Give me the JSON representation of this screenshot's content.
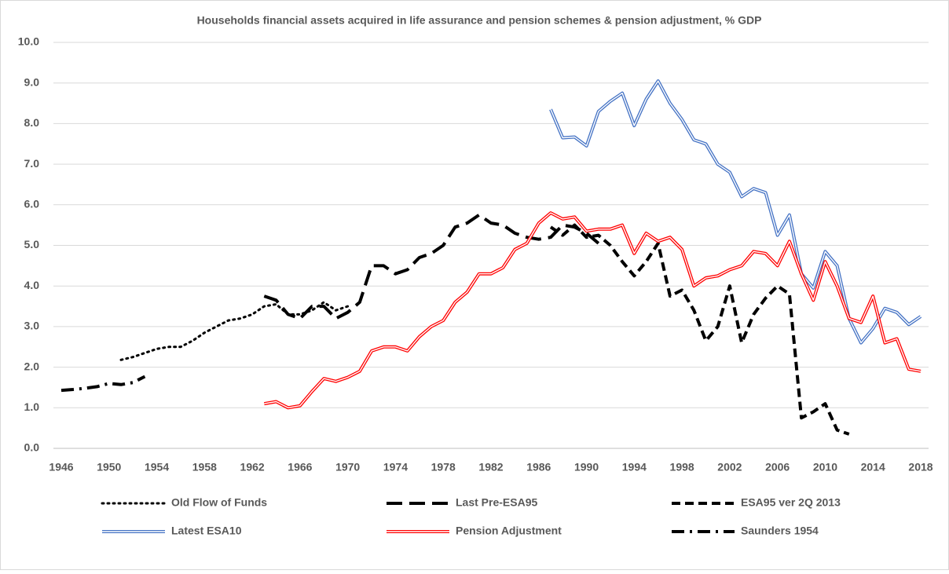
{
  "chart_data": {
    "type": "line",
    "title": "Households financial assets acquired in life assurance and pension schemes & pension adjustment, % GDP",
    "xlim": [
      1946,
      2018
    ],
    "xticks": [
      1946,
      1950,
      1954,
      1958,
      1962,
      1966,
      1970,
      1974,
      1978,
      1982,
      1986,
      1990,
      1994,
      1998,
      2002,
      2006,
      2010,
      2014,
      2018
    ],
    "ylim": [
      0,
      10
    ],
    "yticks": [
      {
        "value": 0,
        "label": "0.0"
      },
      {
        "value": 1,
        "label": "1.0"
      },
      {
        "value": 2,
        "label": "2.0"
      },
      {
        "value": 3,
        "label": "3.0"
      },
      {
        "value": 4,
        "label": "4.0"
      },
      {
        "value": 5,
        "label": "5.0"
      },
      {
        "value": 6,
        "label": "6.0"
      },
      {
        "value": 7,
        "label": "7.0"
      },
      {
        "value": 8,
        "label": "8.0"
      },
      {
        "value": 9,
        "label": "9.0"
      },
      {
        "value": 10,
        "label": "10.0"
      }
    ],
    "grid": true,
    "legend": "bottom",
    "series": [
      {
        "name": "Old Flow of Funds",
        "color": "#000000",
        "style": "dotted",
        "x": [
          1951,
          1952,
          1953,
          1954,
          1955,
          1956,
          1957,
          1958,
          1959,
          1960,
          1961,
          1962,
          1963,
          1964,
          1965,
          1966,
          1967,
          1968,
          1969,
          1970
        ],
        "values": [
          2.18,
          2.25,
          2.35,
          2.45,
          2.5,
          2.5,
          2.65,
          2.85,
          3.0,
          3.15,
          3.2,
          3.3,
          3.5,
          3.55,
          3.3,
          3.3,
          3.4,
          3.6,
          3.4,
          3.5
        ]
      },
      {
        "name": "Last Pre-ESA95",
        "color": "#000000",
        "style": "long-dash",
        "x": [
          1963,
          1964,
          1965,
          1966,
          1967,
          1968,
          1969,
          1970,
          1971,
          1972,
          1973,
          1974,
          1975,
          1976,
          1977,
          1978,
          1979,
          1980,
          1981,
          1982,
          1983,
          1984,
          1985,
          1986,
          1987,
          1988,
          1989,
          1990,
          1991
        ],
        "values": [
          3.75,
          3.65,
          3.3,
          3.2,
          3.5,
          3.5,
          3.2,
          3.35,
          3.6,
          4.5,
          4.5,
          4.3,
          4.4,
          4.7,
          4.8,
          5.0,
          5.45,
          5.55,
          5.75,
          5.55,
          5.5,
          5.3,
          5.2,
          5.15,
          5.2,
          5.5,
          5.45,
          5.3,
          5.05
        ]
      },
      {
        "name": "ESA95 ver 2Q 2013",
        "color": "#000000",
        "style": "dash",
        "x": [
          1987,
          1988,
          1989,
          1990,
          1991,
          1992,
          1993,
          1994,
          1995,
          1996,
          1997,
          1998,
          1999,
          2000,
          2001,
          2002,
          2003,
          2004,
          2005,
          2006,
          2007,
          2008,
          2009,
          2010,
          2011,
          2012
        ],
        "values": [
          5.45,
          5.25,
          5.5,
          5.2,
          5.25,
          5.0,
          4.6,
          4.25,
          4.6,
          5.05,
          3.75,
          3.9,
          3.4,
          2.65,
          3.0,
          4.0,
          2.6,
          3.3,
          3.7,
          4.0,
          3.8,
          0.75,
          0.9,
          1.1,
          0.45,
          0.35
        ]
      },
      {
        "name": "Latest ESA10",
        "color": "#4472c4",
        "style": "double",
        "x": [
          1987,
          1988,
          1989,
          1990,
          1991,
          1992,
          1993,
          1994,
          1995,
          1996,
          1997,
          1998,
          1999,
          2000,
          2001,
          2002,
          2003,
          2004,
          2005,
          2006,
          2007,
          2008,
          2009,
          2010,
          2011,
          2012,
          2013,
          2014,
          2015,
          2016,
          2017,
          2018
        ],
        "values": [
          8.35,
          7.65,
          7.67,
          7.45,
          8.3,
          8.55,
          8.75,
          7.95,
          8.6,
          9.05,
          8.5,
          8.1,
          7.6,
          7.5,
          7.0,
          6.8,
          6.2,
          6.4,
          6.3,
          5.25,
          5.75,
          4.3,
          3.95,
          4.85,
          4.5,
          3.2,
          2.6,
          2.95,
          3.45,
          3.35,
          3.05,
          3.25
        ]
      },
      {
        "name": "Pension Adjustment",
        "color": "#ff0000",
        "style": "double",
        "x": [
          1963,
          1964,
          1965,
          1966,
          1967,
          1968,
          1969,
          1970,
          1971,
          1972,
          1973,
          1974,
          1975,
          1976,
          1977,
          1978,
          1979,
          1980,
          1981,
          1982,
          1983,
          1984,
          1985,
          1986,
          1987,
          1988,
          1989,
          1990,
          1991,
          1992,
          1993,
          1994,
          1995,
          1996,
          1997,
          1998,
          1999,
          2000,
          2001,
          2002,
          2003,
          2004,
          2005,
          2006,
          2007,
          2008,
          2009,
          2010,
          2011,
          2012,
          2013,
          2014,
          2015,
          2016,
          2017,
          2018
        ],
        "values": [
          1.1,
          1.15,
          1.0,
          1.05,
          1.4,
          1.72,
          1.65,
          1.75,
          1.9,
          2.4,
          2.5,
          2.5,
          2.4,
          2.75,
          3.0,
          3.15,
          3.6,
          3.85,
          4.3,
          4.3,
          4.45,
          4.9,
          5.05,
          5.55,
          5.8,
          5.65,
          5.7,
          5.35,
          5.4,
          5.4,
          5.5,
          4.8,
          5.3,
          5.1,
          5.2,
          4.9,
          4.0,
          4.2,
          4.25,
          4.4,
          4.5,
          4.85,
          4.8,
          4.5,
          5.1,
          4.3,
          3.65,
          4.6,
          4.0,
          3.2,
          3.1,
          3.75,
          2.6,
          2.7,
          1.95,
          1.9
        ]
      },
      {
        "name": "Saunders 1954",
        "color": "#000000",
        "style": "dash-dot",
        "x": [
          1946,
          1947,
          1948,
          1949,
          1950,
          1951,
          1952,
          1953
        ],
        "values": [
          1.43,
          1.45,
          1.48,
          1.52,
          1.6,
          1.57,
          1.62,
          1.77
        ]
      }
    ]
  }
}
